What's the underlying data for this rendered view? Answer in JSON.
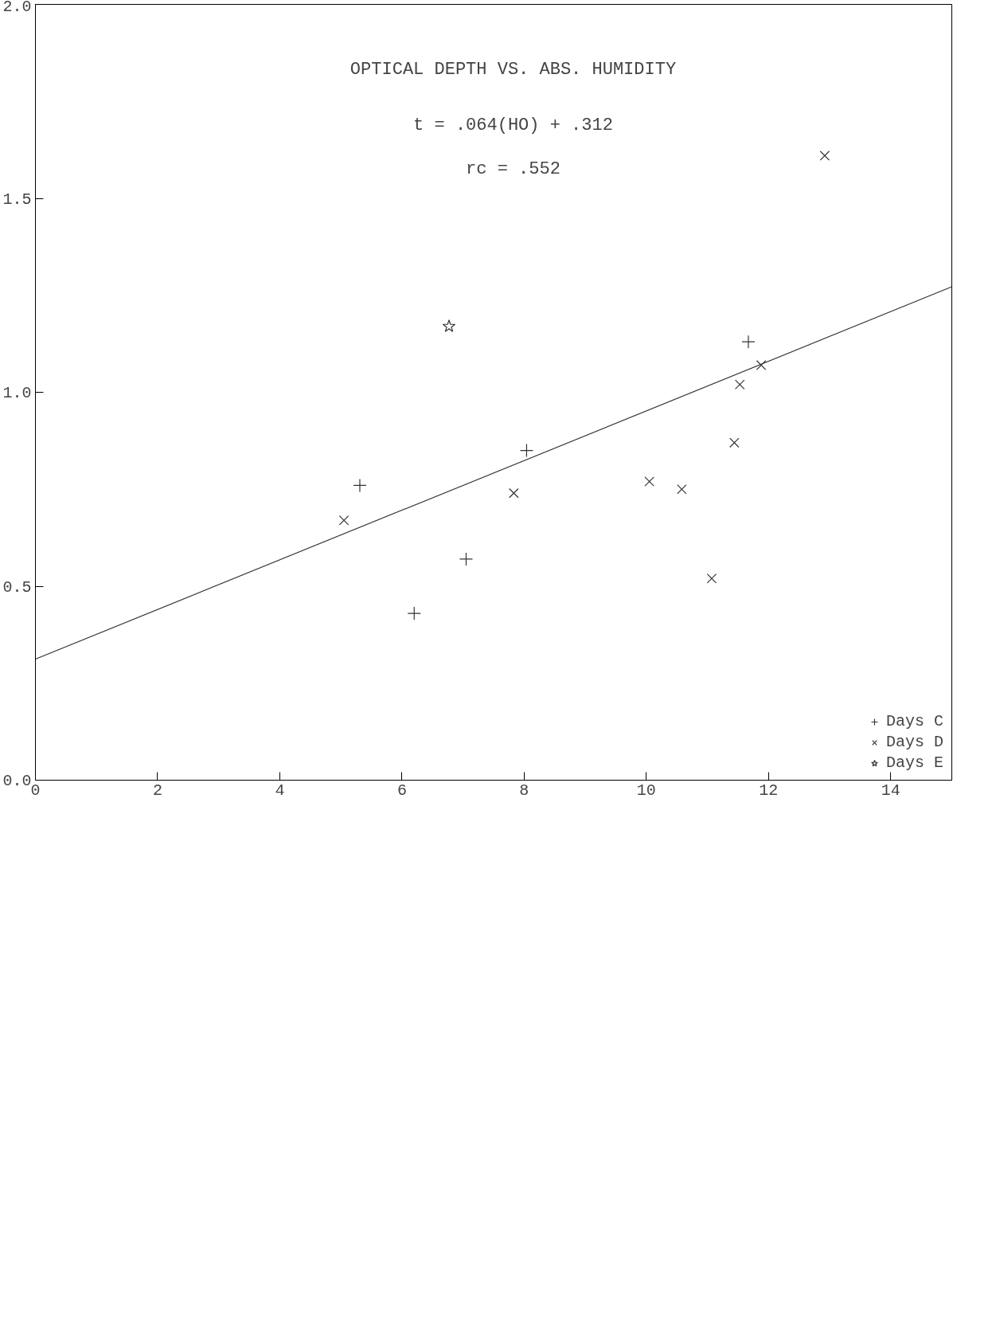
{
  "chart_data": {
    "type": "scatter",
    "title": "OPTICAL DEPTH VS. ABS. HUMIDITY",
    "annotations": [
      "t = .064(HO) + .312",
      "rc = .552"
    ],
    "xlim": [
      0,
      15
    ],
    "ylim": [
      0,
      2
    ],
    "xticks": [
      0,
      2,
      4,
      6,
      8,
      10,
      12,
      14
    ],
    "yticks": [
      {
        "value": 0,
        "label": "0.0"
      },
      {
        "value": 0.5,
        "label": "0.5"
      },
      {
        "value": 1,
        "label": "1.0"
      },
      {
        "value": 1.5,
        "label": "1.5"
      },
      {
        "value": 2,
        "label": "2.0"
      }
    ],
    "grid": false,
    "legend": "bottom right",
    "series": [
      {
        "name": "Days C",
        "color": "#333333",
        "marker": "cross",
        "x": [
          11.67,
          8.04,
          7.05,
          6.2,
          5.31
        ],
        "values": [
          1.13,
          0.85,
          0.57,
          0.43,
          0.76
        ]
      },
      {
        "name": "Days D",
        "color": "#333333",
        "marker": "x",
        "x": [
          12.92,
          11.88,
          11.53,
          11.44,
          11.07,
          10.58,
          10.05,
          7.83,
          5.05
        ],
        "values": [
          1.61,
          1.07,
          1.02,
          0.87,
          0.52,
          0.75,
          0.77,
          0.74,
          0.67
        ]
      },
      {
        "name": "Days E",
        "color": "#333333",
        "marker": "star",
        "x": [
          6.77
        ],
        "values": [
          1.17
        ]
      },
      {
        "type": "line",
        "color": "#333333",
        "x": [
          0,
          15
        ],
        "values": [
          0.312,
          1.272
        ]
      }
    ]
  }
}
